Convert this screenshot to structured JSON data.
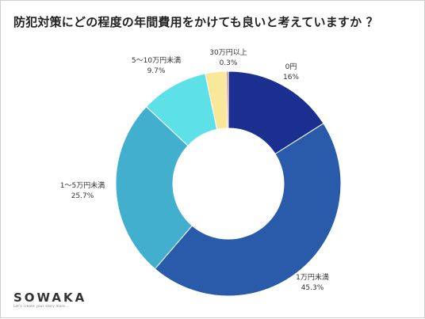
{
  "page": {
    "title": "防犯対策にどの程度の年間費用をかけても良いと考えていますか ？",
    "logo": "SOWAKA",
    "logo_tagline": "Let's create your story more..."
  },
  "chart_data": {
    "type": "pie",
    "style": "donut",
    "title": "防犯対策にどの程度の年間費用をかけても良いと考えていますか ？",
    "slices": [
      {
        "label": "0円",
        "value": 16,
        "value_label": "16%",
        "color": "#1a2f8f"
      },
      {
        "label": "1万円未満",
        "value": 45.3,
        "value_label": "45.3%",
        "color": "#2a5aaa"
      },
      {
        "label": "1～5万円未満",
        "value": 25.7,
        "value_label": "25.7%",
        "color": "#42afcf"
      },
      {
        "label": "5～10万円未満",
        "value": 9.7,
        "value_label": "9.7%",
        "color": "#5ee0e8"
      },
      {
        "label": "30万円以上",
        "value": 0.3,
        "value_label": "0.3%",
        "color": "#e8866c"
      }
    ],
    "legend": "none",
    "labels": "outside"
  }
}
